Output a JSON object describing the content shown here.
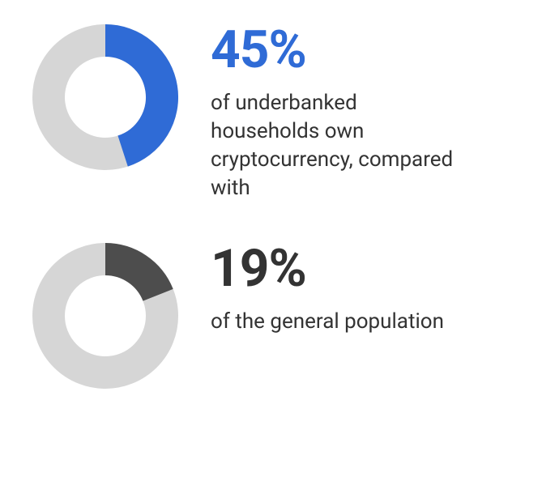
{
  "stats": [
    {
      "percent_label": "45%",
      "percent_value": 45,
      "description": "of underbanked households own cryptocurrency, compared with",
      "donut": {
        "type": "donut",
        "size": 180,
        "thickness": 40,
        "track_color": "#d6d6d6",
        "fill_color": "#2f6bd6",
        "label_color": "#2f6bd6",
        "start_angle_deg": 0
      }
    },
    {
      "percent_label": "19%",
      "percent_value": 19,
      "description": "of the general population",
      "donut": {
        "type": "donut",
        "size": 180,
        "thickness": 40,
        "track_color": "#d6d6d6",
        "fill_color": "#4d4d4d",
        "label_color": "#333333",
        "start_angle_deg": 0
      }
    }
  ],
  "background_color": "#ffffff",
  "desc_color": "#333333",
  "desc_fontsize": 26,
  "pct_fontsize": 64
}
